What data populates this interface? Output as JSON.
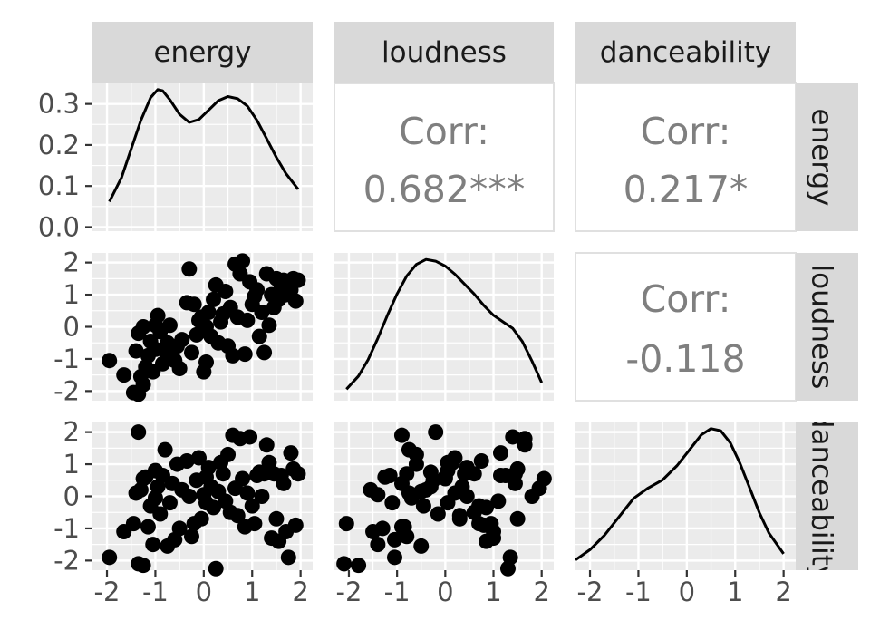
{
  "chart_data": {
    "type": "scatter",
    "variables": [
      "energy",
      "loudness",
      "danceability"
    ],
    "x_ticks": [
      "-2",
      "-1",
      "0",
      "1",
      "2"
    ],
    "density_y_ticks": [
      "0.0",
      "0.1",
      "0.2",
      "0.3"
    ],
    "scatter_y_ticks": [
      "-2",
      "-1",
      "0",
      "1",
      "2"
    ],
    "correlations": {
      "energy_loudness": {
        "label": "Corr:",
        "value": "0.682***"
      },
      "energy_danceability": {
        "label": "Corr:",
        "value": "0.217*"
      },
      "loudness_danceability": {
        "label": "Corr:",
        "value": "-0.118"
      }
    },
    "energy_density": {
      "x": [
        -1.95,
        -1.7,
        -1.5,
        -1.3,
        -1.1,
        -0.95,
        -0.85,
        -0.7,
        -0.5,
        -0.3,
        -0.1,
        0.1,
        0.3,
        0.5,
        0.7,
        0.9,
        1.1,
        1.3,
        1.5,
        1.7,
        1.95
      ],
      "y": [
        0.062,
        0.12,
        0.19,
        0.26,
        0.315,
        0.335,
        0.332,
        0.31,
        0.275,
        0.255,
        0.262,
        0.285,
        0.308,
        0.318,
        0.313,
        0.295,
        0.26,
        0.215,
        0.17,
        0.13,
        0.092
      ],
      "ylim": [
        -0.01,
        0.35
      ]
    },
    "loudness_density": {
      "x": [
        -2.05,
        -1.8,
        -1.6,
        -1.4,
        -1.2,
        -1.0,
        -0.8,
        -0.6,
        -0.4,
        -0.2,
        0.0,
        0.2,
        0.4,
        0.6,
        0.8,
        1.0,
        1.2,
        1.4,
        1.6,
        1.8,
        2.0
      ],
      "y": [
        0.07,
        0.15,
        0.25,
        0.38,
        0.52,
        0.65,
        0.76,
        0.83,
        0.86,
        0.85,
        0.82,
        0.77,
        0.71,
        0.65,
        0.58,
        0.52,
        0.48,
        0.44,
        0.36,
        0.24,
        0.11
      ],
      "ylim": [
        0,
        0.9
      ]
    },
    "danceability_density": {
      "x": [
        -2.3,
        -2.0,
        -1.7,
        -1.4,
        -1.1,
        -0.8,
        -0.5,
        -0.2,
        0.1,
        0.3,
        0.5,
        0.7,
        0.9,
        1.1,
        1.3,
        1.5,
        1.7,
        2.0
      ],
      "y": [
        0.05,
        0.1,
        0.17,
        0.26,
        0.35,
        0.4,
        0.44,
        0.51,
        0.6,
        0.66,
        0.69,
        0.68,
        0.62,
        0.52,
        0.4,
        0.28,
        0.18,
        0.08
      ],
      "ylim": [
        0,
        0.72
      ]
    },
    "points": [
      {
        "energy": -1.95,
        "loudness": -1.05,
        "danceability": -1.9
      },
      {
        "energy": -1.65,
        "loudness": -1.5,
        "danceability": -1.1
      },
      {
        "energy": -1.45,
        "loudness": -2.05,
        "danceability": -0.85
      },
      {
        "energy": -1.35,
        "loudness": -2.1,
        "danceability": -2.1
      },
      {
        "energy": -1.25,
        "loudness": -1.8,
        "danceability": -2.15
      },
      {
        "energy": -1.3,
        "loudness": -1.55,
        "danceability": 0.2
      },
      {
        "energy": -1.4,
        "loudness": -0.75,
        "danceability": 0.1
      },
      {
        "energy": -1.35,
        "loudness": -0.2,
        "danceability": 2.0
      },
      {
        "energy": -1.25,
        "loudness": 0.0,
        "danceability": 0.55
      },
      {
        "energy": -1.2,
        "loudness": -1.25,
        "danceability": 0.6
      },
      {
        "energy": -1.15,
        "loudness": -0.9,
        "danceability": -0.95
      },
      {
        "energy": -1.05,
        "loudness": -1.4,
        "danceability": -1.5
      },
      {
        "energy": -1.1,
        "loudness": -0.45,
        "danceability": -0.3
      },
      {
        "energy": -1.0,
        "loudness": 0.05,
        "danceability": 0.8
      },
      {
        "energy": -1.0,
        "loudness": -0.7,
        "danceability": -0.05
      },
      {
        "energy": -0.95,
        "loudness": 0.35,
        "danceability": 0.3
      },
      {
        "energy": -0.9,
        "loudness": -0.15,
        "danceability": -0.55
      },
      {
        "energy": -0.85,
        "loudness": -1.15,
        "danceability": 0.65
      },
      {
        "energy": -0.8,
        "loudness": -0.75,
        "danceability": 1.45
      },
      {
        "energy": -0.75,
        "loudness": -0.5,
        "danceability": -1.55
      },
      {
        "energy": -0.7,
        "loudness": 0.05,
        "danceability": -0.2
      },
      {
        "energy": -0.65,
        "loudness": -0.9,
        "danceability": 0.4
      },
      {
        "energy": -0.6,
        "loudness": -1.05,
        "danceability": -1.35
      },
      {
        "energy": -0.55,
        "loudness": -0.6,
        "danceability": 1.0
      },
      {
        "energy": -0.5,
        "loudness": -1.3,
        "danceability": -1.0
      },
      {
        "energy": -0.45,
        "loudness": -0.4,
        "danceability": 0.2
      },
      {
        "energy": -0.35,
        "loudness": 0.75,
        "danceability": 1.1
      },
      {
        "energy": -0.3,
        "loudness": 1.8,
        "danceability": 0.0
      },
      {
        "energy": -0.25,
        "loudness": -0.8,
        "danceability": -1.25
      },
      {
        "energy": -0.2,
        "loudness": 0.7,
        "danceability": -0.85
      },
      {
        "energy": -0.15,
        "loudness": -0.25,
        "danceability": 0.5
      },
      {
        "energy": -0.1,
        "loudness": 0.2,
        "danceability": 1.2
      },
      {
        "energy": -0.05,
        "loudness": 0.3,
        "danceability": -0.7
      },
      {
        "energy": 0.0,
        "loudness": -1.4,
        "danceability": 0.05
      },
      {
        "energy": 0.05,
        "loudness": 0.0,
        "danceability": 0.6
      },
      {
        "energy": 0.05,
        "loudness": -1.1,
        "danceability": -0.2
      },
      {
        "energy": 0.1,
        "loudness": 0.45,
        "danceability": 0.9
      },
      {
        "energy": 0.15,
        "loudness": -0.3,
        "danceability": 0.3
      },
      {
        "energy": 0.2,
        "loudness": 0.85,
        "danceability": -0.35
      },
      {
        "energy": 0.25,
        "loudness": 1.3,
        "danceability": -2.25
      },
      {
        "energy": 0.3,
        "loudness": -0.5,
        "danceability": 0.15
      },
      {
        "energy": 0.35,
        "loudness": 0.15,
        "danceability": 1.05
      },
      {
        "energy": 0.4,
        "loudness": 0.4,
        "danceability": 0.7
      },
      {
        "energy": 0.45,
        "loudness": 1.1,
        "danceability": -0.15
      },
      {
        "energy": 0.5,
        "loudness": -0.6,
        "danceability": 1.3
      },
      {
        "energy": 0.55,
        "loudness": 0.6,
        "danceability": -0.5
      },
      {
        "energy": 0.6,
        "loudness": -0.9,
        "danceability": 1.9
      },
      {
        "energy": 0.65,
        "loudness": 1.95,
        "danceability": 0.25
      },
      {
        "energy": 0.7,
        "loudness": 0.3,
        "danceability": -0.6
      },
      {
        "energy": 0.75,
        "loudness": 1.65,
        "danceability": 1.8
      },
      {
        "energy": 0.8,
        "loudness": 2.05,
        "danceability": 0.55
      },
      {
        "energy": 0.85,
        "loudness": -0.85,
        "danceability": -0.95
      },
      {
        "energy": 0.9,
        "loudness": 0.2,
        "danceability": 0.1
      },
      {
        "energy": 0.95,
        "loudness": 1.4,
        "danceability": 1.85
      },
      {
        "energy": 1.0,
        "loudness": 0.7,
        "danceability": -0.3
      },
      {
        "energy": 1.05,
        "loudness": 0.95,
        "danceability": -0.85
      },
      {
        "energy": 1.1,
        "loudness": 1.15,
        "danceability": 0.65
      },
      {
        "energy": 1.15,
        "loudness": -0.3,
        "danceability": 0.75
      },
      {
        "energy": 1.2,
        "loudness": 0.45,
        "danceability": 0.0
      },
      {
        "energy": 1.25,
        "loudness": -0.8,
        "danceability": 0.7
      },
      {
        "energy": 1.3,
        "loudness": 1.65,
        "danceability": 1.6
      },
      {
        "energy": 1.35,
        "loudness": 0.05,
        "danceability": 1.05
      },
      {
        "energy": 1.4,
        "loudness": 1.0,
        "danceability": -1.3
      },
      {
        "energy": 1.45,
        "loudness": 0.6,
        "danceability": 0.7
      },
      {
        "energy": 1.5,
        "loudness": 1.5,
        "danceability": -0.7
      },
      {
        "energy": 1.55,
        "loudness": 0.85,
        "danceability": -1.4
      },
      {
        "energy": 1.6,
        "loudness": 1.25,
        "danceability": 0.65
      },
      {
        "energy": 1.65,
        "loudness": 1.45,
        "danceability": 0.4
      },
      {
        "energy": 1.7,
        "loudness": 1.0,
        "danceability": -1.1
      },
      {
        "energy": 1.75,
        "loudness": 1.35,
        "danceability": -1.9
      },
      {
        "energy": 1.8,
        "loudness": 1.15,
        "danceability": 1.35
      },
      {
        "energy": 1.85,
        "loudness": 1.5,
        "danceability": 0.85
      },
      {
        "energy": 1.9,
        "loudness": 0.8,
        "danceability": -0.9
      },
      {
        "energy": 1.95,
        "loudness": 1.45,
        "danceability": 0.7
      }
    ],
    "xlim": [
      -2.3,
      2.25
    ],
    "ylim": [
      -2.3,
      2.3
    ],
    "colors": {
      "panel_bg": "#ebebeb",
      "grid": "#ffffff",
      "strip_bg": "#d9d9d9",
      "text": "#1a1a1a",
      "tick": "#4d4d4d",
      "corr_text": "#7f7f7f",
      "point": "#000000"
    }
  }
}
